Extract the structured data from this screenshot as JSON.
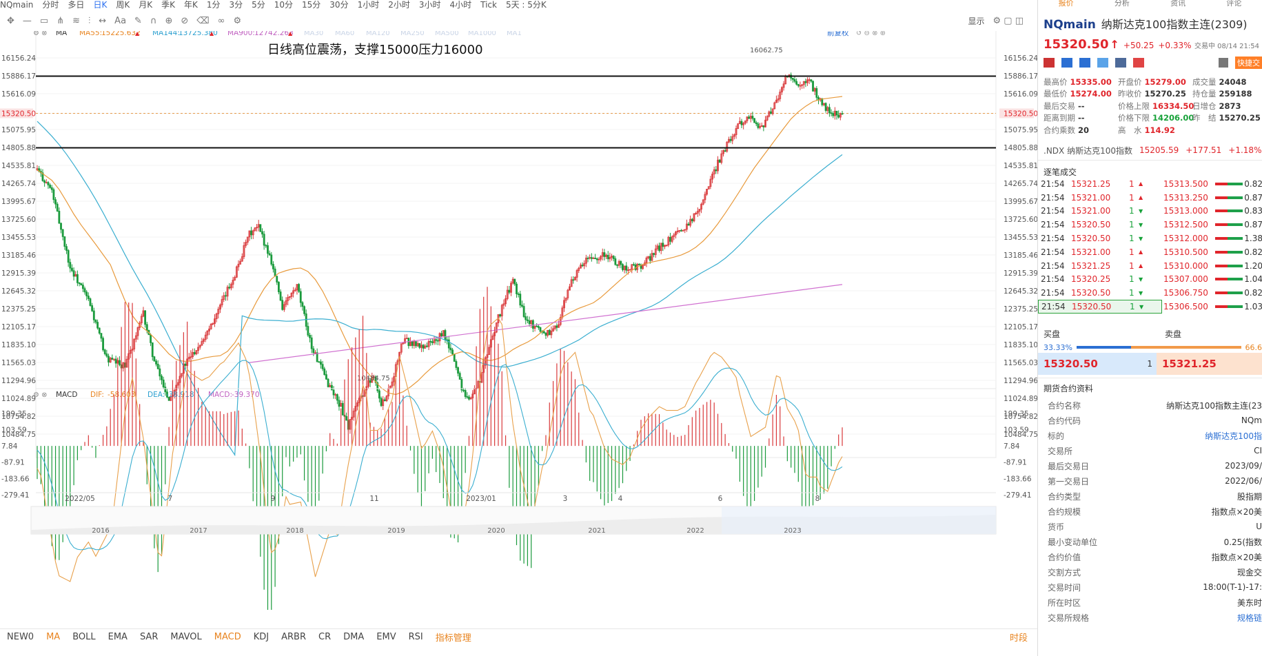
{
  "period_bar": {
    "items": [
      "NQmain",
      "分时",
      "多日",
      "日K",
      "周K",
      "月K",
      "季K",
      "年K",
      "1分",
      "3分",
      "5分",
      "10分",
      "15分",
      "30分",
      "1小时",
      "2小时",
      "3小时",
      "4小时",
      "Tick",
      "5天 : 5分K"
    ],
    "selected": "日K"
  },
  "toolbar": {
    "right_label": "显示",
    "icons": [
      "crosshair-icon",
      "line-icon",
      "rect-icon",
      "fork-icon",
      "fib-icon",
      "trend-icon",
      "arrow-icon",
      "text-icon",
      "brush-icon",
      "magnet-icon",
      "lock-icon",
      "eye-icon",
      "trash-icon",
      "link-icon",
      "gear-icon"
    ]
  },
  "main_chart": {
    "indicator": "MA",
    "ma55_label": "MA55:",
    "ma55_value": "15225.632",
    "ma144_label": "MA144:",
    "ma144_value": "13725.380",
    "ma900_label": "MA900:",
    "ma900_value": "12742.263",
    "faded_labels": [
      "MA30",
      "MA60",
      "MA120",
      "MA250",
      "MA500",
      "MA1000",
      "MA1"
    ],
    "adjust_label": "前复权",
    "annotation": "日线高位震荡，支撑15000压力16000",
    "high_label": "16062.75",
    "low_label": "10484.75",
    "price_axis": [
      "16156.24",
      "15886.17",
      "15616.09",
      "15320.50",
      "15075.95",
      "14805.88",
      "14535.81",
      "14265.74",
      "13995.67",
      "13725.60",
      "13455.53",
      "13185.46",
      "12915.39",
      "12645.32",
      "12375.25",
      "12105.17",
      "11835.10",
      "11565.03",
      "11294.96",
      "11024.89",
      "10754.82",
      "10484.75"
    ],
    "current_price": "15320.50",
    "support_level": 15000,
    "resistance_level": 16000
  },
  "macd_panel": {
    "name": "MACD",
    "dif_label": "DIF:",
    "dif_value": "-58.603",
    "dea_label": "DEA:",
    "dea_value": "-38.918",
    "macd_label": "MACD:",
    "macd_value": "-39.370",
    "axis": [
      "199.35",
      "103.59",
      "7.84",
      "-87.91",
      "-183.66",
      "-279.41"
    ]
  },
  "time_axis": [
    "2022/05",
    "7",
    "9",
    "11",
    "2023/01",
    "3",
    "4",
    "6",
    "8"
  ],
  "overview_years": [
    "2016",
    "2017",
    "2018",
    "2019",
    "2020",
    "2021",
    "2022",
    "2023"
  ],
  "indicator_bar": {
    "items": [
      "NEW0",
      "MA",
      "BOLL",
      "EMA",
      "SAR",
      "MAVOL",
      "MACD",
      "KDJ",
      "ARBR",
      "CR",
      "DMA",
      "EMV",
      "RSI",
      "指标管理"
    ],
    "selected": [
      "MA",
      "MACD",
      "指标管理"
    ],
    "right_label": "时段"
  },
  "right_panel": {
    "tabs": [
      "报价",
      "分析",
      "资讯",
      "评论"
    ],
    "symbol": "NQmain",
    "name": "纳斯达克100指数主连(2309)",
    "price": "15320.50",
    "arrow": "↑",
    "change": "+50.25",
    "change_pct": "+0.33%",
    "status": "交易中 08/14 21:54",
    "quick_trade": "快捷交",
    "stats": [
      [
        {
          "label": "最高价",
          "value": "15335.00",
          "color": "red"
        },
        {
          "label": "开盘价",
          "value": "15279.00",
          "color": "red"
        },
        {
          "label": "成交量",
          "value": "24048",
          "color": "dk"
        }
      ],
      [
        {
          "label": "最低价",
          "value": "15274.00",
          "color": "red"
        },
        {
          "label": "昨收价",
          "value": "15270.25",
          "color": "dk"
        },
        {
          "label": "持仓量",
          "value": "259188",
          "color": "dk"
        }
      ],
      [
        {
          "label": "最后交易",
          "value": "--",
          "color": "dk"
        },
        {
          "label": "价格上限",
          "value": "16334.50",
          "color": "red"
        },
        {
          "label": "日增仓",
          "value": "2873",
          "color": "dk"
        }
      ],
      [
        {
          "label": "距离到期",
          "value": "--",
          "color": "dk"
        },
        {
          "label": "价格下限",
          "value": "14206.00",
          "color": "green"
        },
        {
          "label": "昨　结",
          "value": "15270.25",
          "color": "dk"
        }
      ],
      [
        {
          "label": "合约乘数",
          "value": "20",
          "color": "dk"
        },
        {
          "label": "高　水",
          "value": "114.92",
          "color": "red"
        },
        {
          "label": "",
          "value": "",
          "color": "dk"
        }
      ]
    ],
    "ndx": {
      "label": ".NDX 纳斯达克100指数",
      "price": "15205.59",
      "change": "+177.51",
      "pct": "+1.18%"
    },
    "tick_title": "逐笔成交",
    "ticks": [
      {
        "time": "21:54",
        "price": "15321.25",
        "qty": "1",
        "dir": "up"
      },
      {
        "time": "21:54",
        "price": "15321.00",
        "qty": "1",
        "dir": "up"
      },
      {
        "time": "21:54",
        "price": "15321.00",
        "qty": "1",
        "dir": "down"
      },
      {
        "time": "21:54",
        "price": "15320.50",
        "qty": "1",
        "dir": "down"
      },
      {
        "time": "21:54",
        "price": "15320.50",
        "qty": "1",
        "dir": "down"
      },
      {
        "time": "21:54",
        "price": "15321.00",
        "qty": "1",
        "dir": "up"
      },
      {
        "time": "21:54",
        "price": "15321.25",
        "qty": "1",
        "dir": "up"
      },
      {
        "time": "21:54",
        "price": "15320.25",
        "qty": "1",
        "dir": "down"
      },
      {
        "time": "21:54",
        "price": "15320.50",
        "qty": "1",
        "dir": "down"
      },
      {
        "time": "21:54",
        "price": "15320.50",
        "qty": "1",
        "dir": "down"
      }
    ],
    "book": [
      {
        "price": "15313.500",
        "val": "0.82"
      },
      {
        "price": "15313.250",
        "val": "0.87"
      },
      {
        "price": "15313.000",
        "val": "0.83"
      },
      {
        "price": "15312.500",
        "val": "0.87"
      },
      {
        "price": "15312.000",
        "val": "1.38"
      },
      {
        "price": "15310.500",
        "val": "0.82"
      },
      {
        "price": "15310.000",
        "val": "1.20"
      },
      {
        "price": "15307.000",
        "val": "1.04"
      },
      {
        "price": "15306.750",
        "val": "0.82"
      },
      {
        "price": "15306.500",
        "val": "1.03"
      }
    ],
    "buy_label": "买盘",
    "sell_label": "卖盘",
    "buy_pct": "33.33%",
    "sell_pct": "66.6",
    "bid_price": "15320.50",
    "bid_qty": "1",
    "ask_price": "15321.25",
    "contract_title": "期货合约资料",
    "contract": [
      {
        "k": "合约名称",
        "v": "纳斯达克100指数主连(23"
      },
      {
        "k": "合约代码",
        "v": "NQm"
      },
      {
        "k": "标的",
        "v": "纳斯达克100指"
      },
      {
        "k": "交易所",
        "v": "CI"
      },
      {
        "k": "最后交易日",
        "v": "2023/09/"
      },
      {
        "k": "第一交易日",
        "v": "2022/06/"
      },
      {
        "k": "合约类型",
        "v": "股指期"
      },
      {
        "k": "合约规模",
        "v": "指数点×20美"
      },
      {
        "k": "货币",
        "v": "U"
      },
      {
        "k": "最小变动单位",
        "v": "0.25(指数"
      },
      {
        "k": "合约价值",
        "v": "指数点×20美"
      },
      {
        "k": "交割方式",
        "v": "现金交"
      },
      {
        "k": "交易时间",
        "v": "18:00(T-1)-17:"
      },
      {
        "k": "所在时区",
        "v": "美东时"
      },
      {
        "k": "交易所规格",
        "v": "规格链"
      }
    ]
  }
}
